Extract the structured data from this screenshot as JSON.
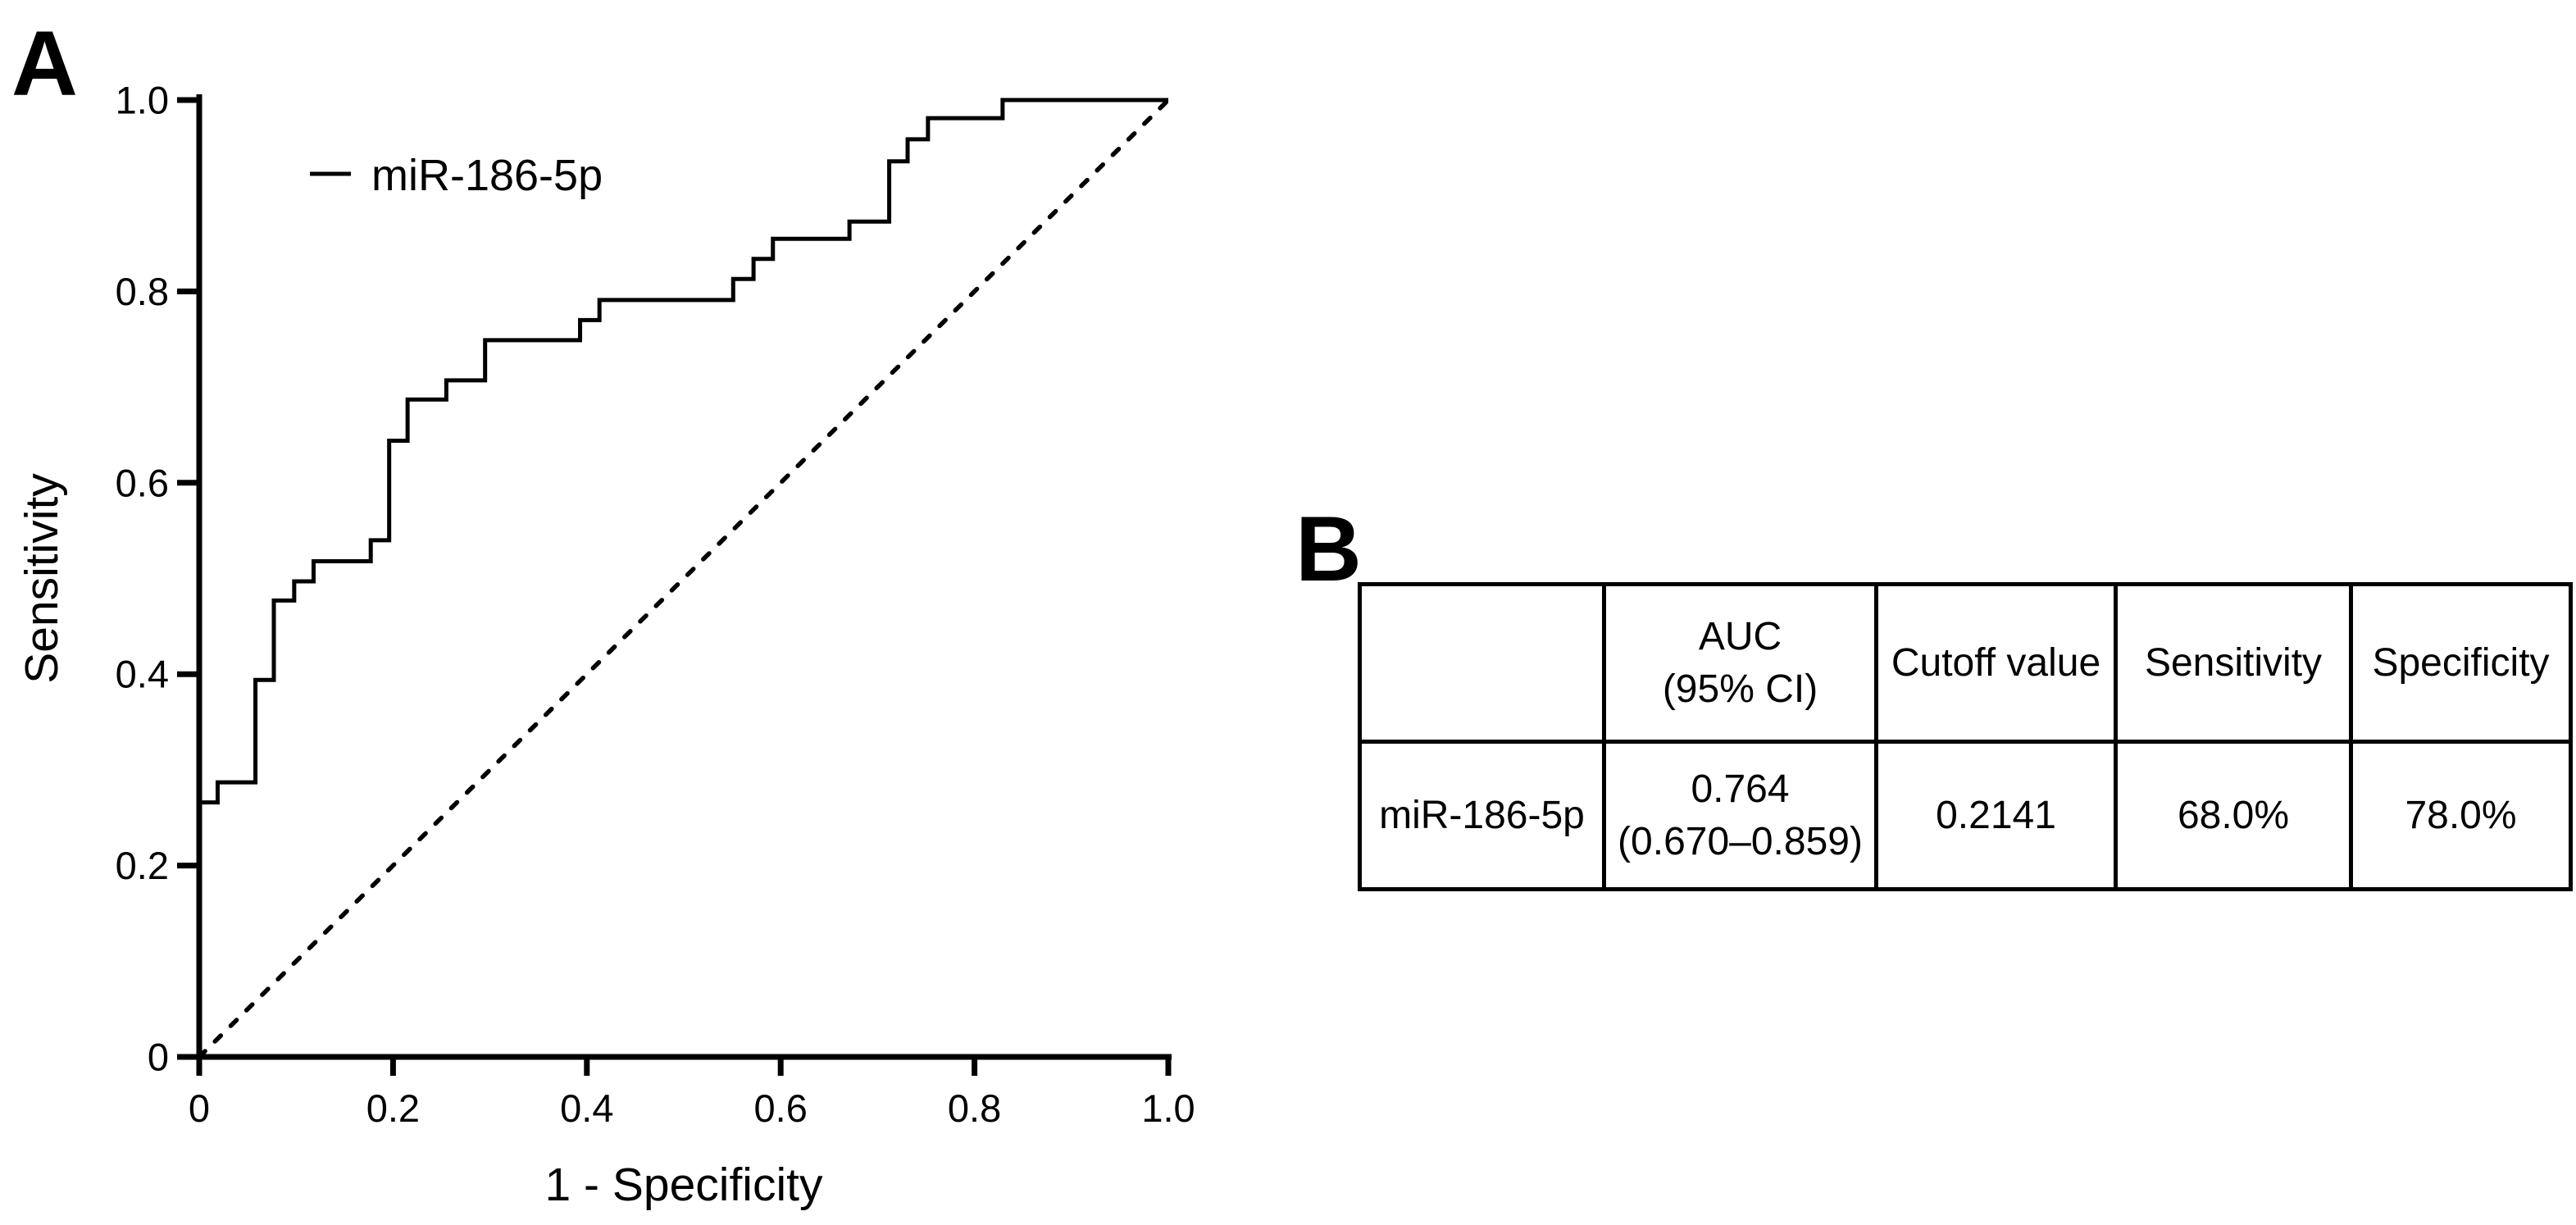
{
  "panels": {
    "a_label": "A",
    "b_label": "B"
  },
  "chart_data": {
    "type": "line",
    "subtype": "roc-step-curve",
    "title": "",
    "xlabel": "1 - Specificity",
    "ylabel": "Sensitivity",
    "xlim": [
      0,
      1
    ],
    "ylim": [
      0,
      1
    ],
    "grid": false,
    "legend_position": "top-left-inside",
    "x_ticks": [
      0,
      0.2,
      0.4,
      0.6,
      0.8,
      1.0
    ],
    "x_tick_labels": [
      "0",
      "0.2",
      "0.4",
      "0.6",
      "0.8",
      "1.0"
    ],
    "y_ticks": [
      0,
      0.2,
      0.4,
      0.6,
      0.8,
      1.0
    ],
    "y_tick_labels": [
      "0",
      "0.2",
      "0.4",
      "0.6",
      "0.8",
      "1.0"
    ],
    "colors": {
      "curve": "#000000",
      "diagonal": "#000000",
      "axis": "#000000"
    },
    "series": [
      {
        "name": "miR-186-5p",
        "style": "solid-step",
        "points": [
          [
            0,
            0
          ],
          [
            0,
            0.266
          ],
          [
            0.019,
            0.266
          ],
          [
            0.019,
            0.287
          ],
          [
            0.058,
            0.287
          ],
          [
            0.058,
            0.394
          ],
          [
            0.077,
            0.394
          ],
          [
            0.077,
            0.477
          ],
          [
            0.098,
            0.477
          ],
          [
            0.098,
            0.497
          ],
          [
            0.118,
            0.497
          ],
          [
            0.118,
            0.518
          ],
          [
            0.177,
            0.518
          ],
          [
            0.177,
            0.54
          ],
          [
            0.196,
            0.54
          ],
          [
            0.196,
            0.644
          ],
          [
            0.215,
            0.644
          ],
          [
            0.215,
            0.687
          ],
          [
            0.255,
            0.687
          ],
          [
            0.255,
            0.707
          ],
          [
            0.295,
            0.707
          ],
          [
            0.295,
            0.749
          ],
          [
            0.393,
            0.749
          ],
          [
            0.393,
            0.77
          ],
          [
            0.413,
            0.77
          ],
          [
            0.413,
            0.791
          ],
          [
            0.551,
            0.791
          ],
          [
            0.551,
            0.813
          ],
          [
            0.572,
            0.813
          ],
          [
            0.572,
            0.834
          ],
          [
            0.592,
            0.834
          ],
          [
            0.592,
            0.855
          ],
          [
            0.671,
            0.855
          ],
          [
            0.671,
            0.873
          ],
          [
            0.712,
            0.873
          ],
          [
            0.712,
            0.936
          ],
          [
            0.731,
            0.936
          ],
          [
            0.731,
            0.959
          ],
          [
            0.752,
            0.959
          ],
          [
            0.752,
            0.981
          ],
          [
            0.829,
            0.981
          ],
          [
            0.829,
            1
          ],
          [
            1,
            1
          ]
        ]
      },
      {
        "name": "reference-diagonal",
        "style": "dashed",
        "points": [
          [
            0,
            0
          ],
          [
            1,
            1
          ]
        ]
      }
    ]
  },
  "table": {
    "headers": [
      "",
      "AUC\n(95% CI)",
      "Cutoff value",
      "Sensitivity",
      "Specificity"
    ],
    "rows": [
      [
        "miR-186-5p",
        "0.764\n(0.670–0.859)",
        "0.2141",
        "68.0%",
        "78.0%"
      ]
    ]
  }
}
